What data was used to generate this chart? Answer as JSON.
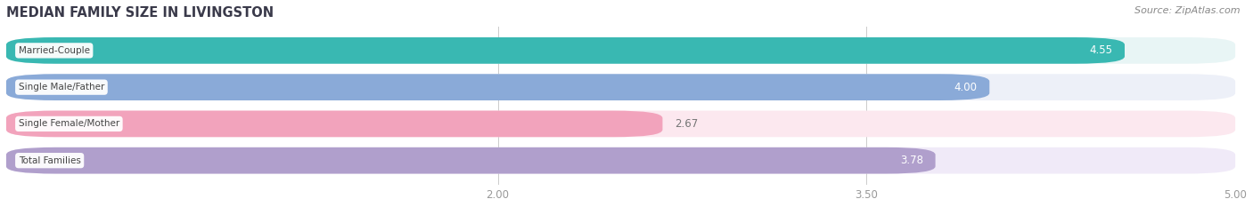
{
  "title": "MEDIAN FAMILY SIZE IN LIVINGSTON",
  "source": "Source: ZipAtlas.com",
  "categories": [
    "Married-Couple",
    "Single Male/Father",
    "Single Female/Mother",
    "Total Families"
  ],
  "values": [
    4.55,
    4.0,
    2.67,
    3.78
  ],
  "bar_colors": [
    "#39b8b2",
    "#8aaad8",
    "#f2a3bc",
    "#b09fcc"
  ],
  "bar_bg_colors": [
    "#e8f5f5",
    "#edf0f8",
    "#fce8ef",
    "#f0eaf8"
  ],
  "xmin": 0.0,
  "xmax": 5.0,
  "xlim_display": [
    1.5,
    5.25
  ],
  "xticks": [
    2.0,
    3.5,
    5.0
  ],
  "label_color": "#444444",
  "title_color": "#3a3a4a",
  "background_color": "#ffffff",
  "plot_bg_color": "#f0f0f0"
}
